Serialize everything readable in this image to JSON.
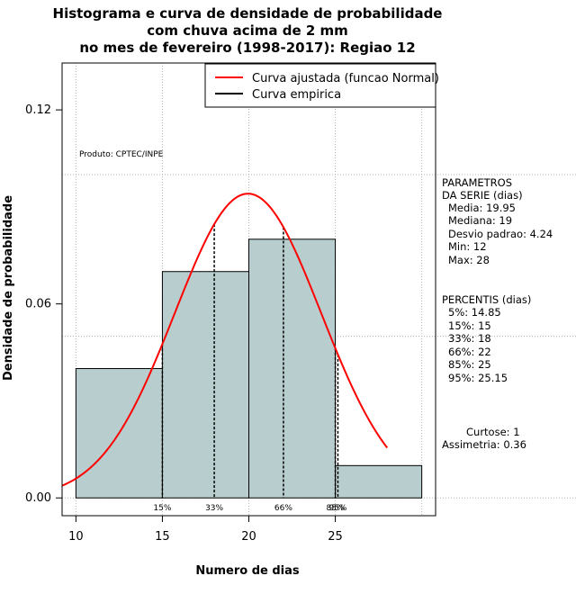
{
  "chart_data": {
    "type": "bar",
    "title_lines": [
      "Histograma e curva de densidade de probabilidade",
      "com chuva acima de 2 mm",
      "no mes de fevereiro (1998-2017): Regiao 12"
    ],
    "xlabel": "Numero de dias",
    "ylabel": "Densidade de probabilidade",
    "xlim": [
      9.2,
      30.8
    ],
    "ylim": [
      -0.0055,
      0.1345
    ],
    "x_ticks": [
      10,
      15,
      20,
      25
    ],
    "y_ticks": [
      0.0,
      0.06,
      0.12
    ],
    "y_tick_labels": [
      "0.00",
      "0.06",
      "0.12"
    ],
    "x_grid": [
      10,
      15,
      20,
      25,
      30
    ],
    "y_grid_lines": [
      0.0,
      0.05,
      0.1
    ],
    "grid": true,
    "bar_color": "#b8cece",
    "bins": [
      {
        "start": 10,
        "end": 15,
        "density": 0.04
      },
      {
        "start": 15,
        "end": 20,
        "density": 0.07
      },
      {
        "start": 20,
        "end": 25,
        "density": 0.08
      },
      {
        "start": 25,
        "end": 30,
        "density": 0.01
      }
    ],
    "normal_curve": {
      "name": "Curva ajustada (funcao Normal)",
      "color": "#ff0000",
      "mean": 19.95,
      "sd": 4.24,
      "x_start": 9.2,
      "x_end": 28
    },
    "percentile_lines": [
      {
        "label": "15%",
        "x": 15
      },
      {
        "label": "33%",
        "x": 18
      },
      {
        "label": "66%",
        "x": 22
      },
      {
        "label": "85%",
        "x": 25
      },
      {
        "label": "95%",
        "x": 25.15
      }
    ],
    "legend": {
      "placement": "top-right",
      "entries": [
        {
          "label": "Curva ajustada (funcao Normal)",
          "color": "#ff0000"
        },
        {
          "label": "Curva empirica",
          "color": "#000000"
        }
      ]
    },
    "annotation": "Produto: CPTEC/INPE",
    "parametros": {
      "header": [
        "PARAMETROS",
        "DA SERIE (dias)"
      ],
      "lines": [
        "Media: 19.95",
        "Mediana: 19",
        "Desvio padrao: 4.24",
        "Min: 12",
        "Max: 28"
      ]
    },
    "percentis": {
      "header": "PERCENTIS (dias)",
      "lines": [
        "5%: 14.85",
        "15%: 15",
        "33%: 18",
        "66%: 22",
        "85%: 25",
        "95%: 25.15"
      ]
    },
    "curtose": "Curtose: 1",
    "assimetria": "Assimetria: 0.36"
  }
}
